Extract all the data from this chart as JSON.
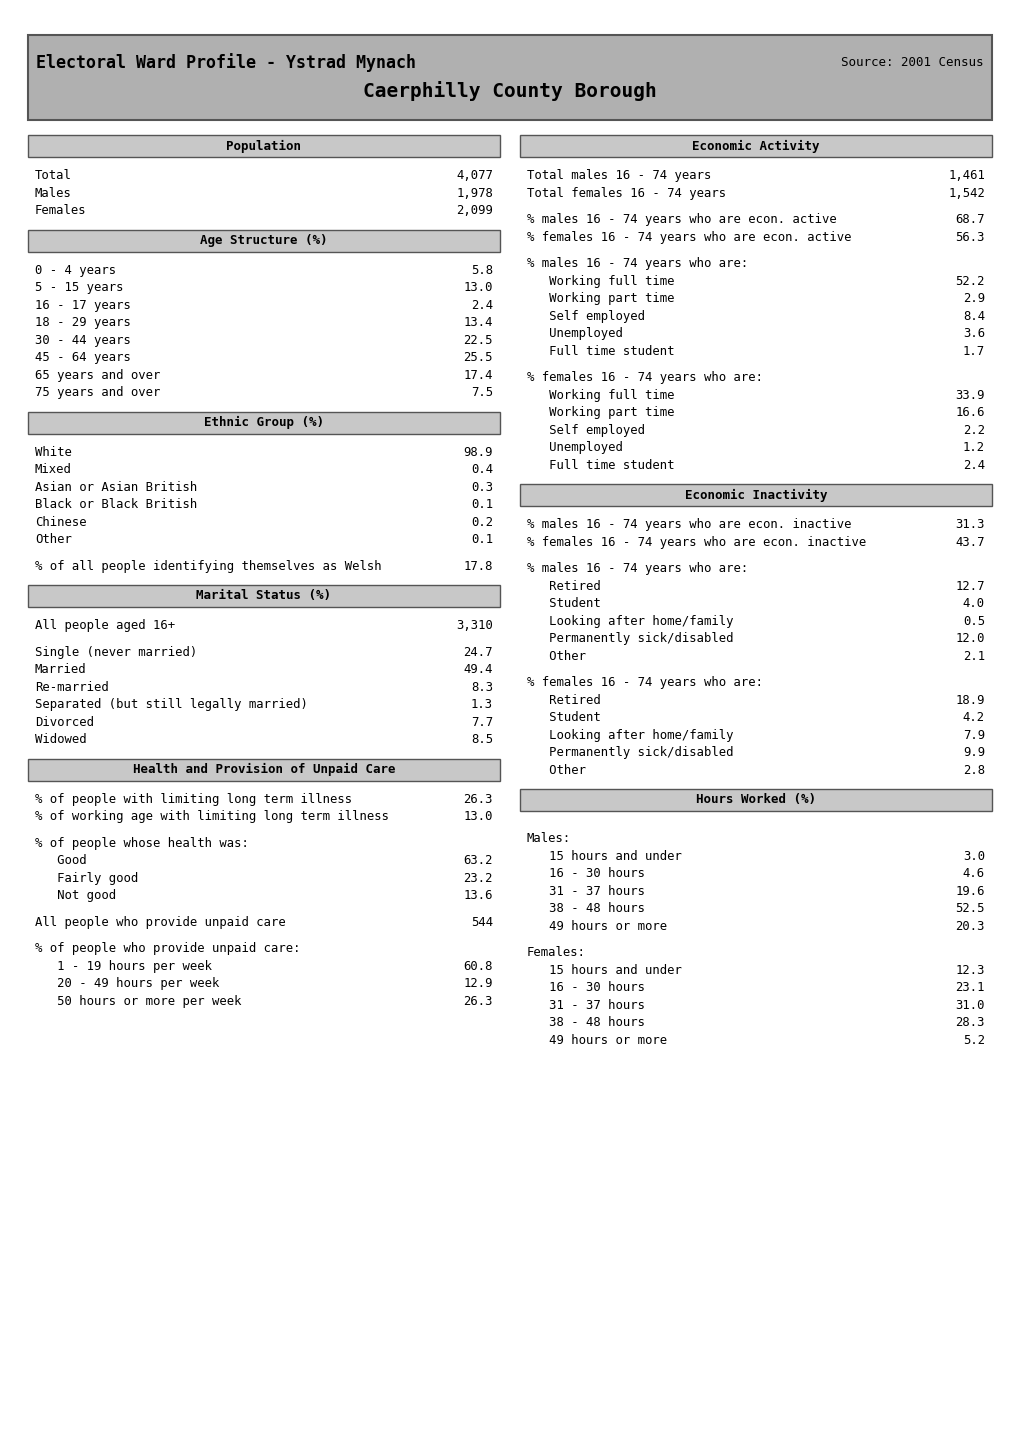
{
  "title_line1": "Caerphilly County Borough",
  "title_line2": "Electoral Ward Profile - Ystrad Mynach",
  "source": "Source: 2001 Census",
  "header_bg": "#b0b0b0",
  "section_bg": "#c8c8c8",
  "left_sections": [
    {
      "header": "Population",
      "rows": [
        [
          "Total",
          "4,077"
        ],
        [
          "Males",
          "1,978"
        ],
        [
          "Females",
          "2,099"
        ]
      ]
    },
    {
      "header": "Age Structure (%)",
      "rows": [
        [
          "0 - 4 years",
          "5.8"
        ],
        [
          "5 - 15 years",
          "13.0"
        ],
        [
          "16 - 17 years",
          "2.4"
        ],
        [
          "18 - 29 years",
          "13.4"
        ],
        [
          "30 - 44 years",
          "22.5"
        ],
        [
          "45 - 64 years",
          "25.5"
        ],
        [
          "65 years and over",
          "17.4"
        ],
        [
          "75 years and over",
          "7.5"
        ]
      ]
    },
    {
      "header": "Ethnic Group (%)",
      "rows": [
        [
          "White",
          "98.9"
        ],
        [
          "Mixed",
          "0.4"
        ],
        [
          "Asian or Asian British",
          "0.3"
        ],
        [
          "Black or Black British",
          "0.1"
        ],
        [
          "Chinese",
          "0.2"
        ],
        [
          "Other",
          "0.1"
        ],
        [
          "",
          ""
        ],
        [
          "% of all people identifying themselves as Welsh",
          "17.8"
        ]
      ]
    },
    {
      "header": "Marital Status (%)",
      "rows": [
        [
          "All people aged 16+",
          "3,310"
        ],
        [
          "",
          ""
        ],
        [
          "Single (never married)",
          "24.7"
        ],
        [
          "Married",
          "49.4"
        ],
        [
          "Re-married",
          "8.3"
        ],
        [
          "Separated (but still legally married)",
          "1.3"
        ],
        [
          "Divorced",
          "7.7"
        ],
        [
          "Widowed",
          "8.5"
        ]
      ]
    },
    {
      "header": "Health and Provision of Unpaid Care",
      "rows": [
        [
          "% of people with limiting long term illness",
          "26.3"
        ],
        [
          "% of working age with limiting long term illness",
          "13.0"
        ],
        [
          "",
          ""
        ],
        [
          "% of people whose health was:",
          ""
        ],
        [
          "   Good",
          "63.2"
        ],
        [
          "   Fairly good",
          "23.2"
        ],
        [
          "   Not good",
          "13.6"
        ],
        [
          "",
          ""
        ],
        [
          "All people who provide unpaid care",
          "544"
        ],
        [
          "",
          ""
        ],
        [
          "% of people who provide unpaid care:",
          ""
        ],
        [
          "   1 - 19 hours per week",
          "60.8"
        ],
        [
          "   20 - 49 hours per week",
          "12.9"
        ],
        [
          "   50 hours or more per week",
          "26.3"
        ]
      ]
    }
  ],
  "right_sections": [
    {
      "header": "Economic Activity",
      "rows": [
        [
          "Total males 16 - 74 years",
          "1,461"
        ],
        [
          "Total females 16 - 74 years",
          "1,542"
        ],
        [
          "",
          ""
        ],
        [
          "% males 16 - 74 years who are econ. active",
          "68.7"
        ],
        [
          "% females 16 - 74 years who are econ. active",
          "56.3"
        ],
        [
          "",
          ""
        ],
        [
          "% males 16 - 74 years who are:",
          ""
        ],
        [
          "   Working full time",
          "52.2"
        ],
        [
          "   Working part time",
          "2.9"
        ],
        [
          "   Self employed",
          "8.4"
        ],
        [
          "   Unemployed",
          "3.6"
        ],
        [
          "   Full time student",
          "1.7"
        ],
        [
          "",
          ""
        ],
        [
          "% females 16 - 74 years who are:",
          ""
        ],
        [
          "   Working full time",
          "33.9"
        ],
        [
          "   Working part time",
          "16.6"
        ],
        [
          "   Self employed",
          "2.2"
        ],
        [
          "   Unemployed",
          "1.2"
        ],
        [
          "   Full time student",
          "2.4"
        ]
      ]
    },
    {
      "header": "Economic Inactivity",
      "rows": [
        [
          "% males 16 - 74 years who are econ. inactive",
          "31.3"
        ],
        [
          "% females 16 - 74 years who are econ. inactive",
          "43.7"
        ],
        [
          "",
          ""
        ],
        [
          "% males 16 - 74 years who are:",
          ""
        ],
        [
          "   Retired",
          "12.7"
        ],
        [
          "   Student",
          "4.0"
        ],
        [
          "   Looking after home/family",
          "0.5"
        ],
        [
          "   Permanently sick/disabled",
          "12.0"
        ],
        [
          "   Other",
          "2.1"
        ],
        [
          "",
          ""
        ],
        [
          "% females 16 - 74 years who are:",
          ""
        ],
        [
          "   Retired",
          "18.9"
        ],
        [
          "   Student",
          "4.2"
        ],
        [
          "   Looking after home/family",
          "7.9"
        ],
        [
          "   Permanently sick/disabled",
          "9.9"
        ],
        [
          "   Other",
          "2.8"
        ]
      ]
    },
    {
      "header": "Hours Worked (%)",
      "rows": [
        [
          "",
          ""
        ],
        [
          "Males:",
          ""
        ],
        [
          "   15 hours and under",
          "3.0"
        ],
        [
          "   16 - 30 hours",
          "4.6"
        ],
        [
          "   31 - 37 hours",
          "19.6"
        ],
        [
          "   38 - 48 hours",
          "52.5"
        ],
        [
          "   49 hours or more",
          "20.3"
        ],
        [
          "",
          ""
        ],
        [
          "Females:",
          ""
        ],
        [
          "   15 hours and under",
          "12.3"
        ],
        [
          "   16 - 30 hours",
          "23.1"
        ],
        [
          "   31 - 37 hours",
          "31.0"
        ],
        [
          "   38 - 48 hours",
          "28.3"
        ],
        [
          "   49 hours or more",
          "5.2"
        ]
      ]
    }
  ]
}
